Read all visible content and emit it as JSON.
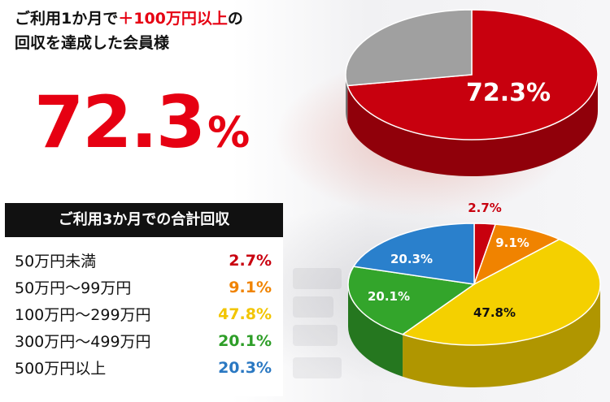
{
  "headline": {
    "part1": "ご利用1か月で",
    "highlight": "＋100万円以上",
    "part2": "の",
    "line2": "回収を達成した会員様"
  },
  "big_percent": {
    "number": "72.3",
    "unit": "%"
  },
  "table": {
    "title": "ご利用3か月での合計回収",
    "rows": [
      {
        "label": "50万円未満",
        "value": "2.7%",
        "color": "#c9000f"
      },
      {
        "label": "50万円～99万円",
        "value": "9.1%",
        "color": "#f08300"
      },
      {
        "label": "100万円～299万円",
        "value": "47.8%",
        "color": "#f2c500"
      },
      {
        "label": "300万円～499万円",
        "value": "20.1%",
        "color": "#2e9e28"
      },
      {
        "label": "500万円以上",
        "value": "20.3%",
        "color": "#2a78c2"
      }
    ]
  },
  "chart_data": [
    {
      "type": "pie",
      "categories": [
        "",
        ""
      ],
      "values": [
        72.3,
        27.7
      ],
      "slice_labels": [
        "72.3%",
        ""
      ],
      "colors": [
        "#c8000e",
        "#a0a0a0"
      ]
    },
    {
      "type": "pie",
      "title": "ご利用3か月での合計回収",
      "categories": [
        "50万円未満",
        "50万円～99万円",
        "100万円～299万円",
        "300万円～499万円",
        "500万円以上"
      ],
      "values": [
        2.7,
        9.1,
        47.8,
        20.1,
        20.3
      ],
      "slice_labels": [
        "2.7%",
        "9.1%",
        "47.8%",
        "20.1%",
        "20.3%"
      ],
      "colors": [
        "#c8000e",
        "#f08300",
        "#f4d000",
        "#33a52b",
        "#2a80cc"
      ],
      "label_colors": [
        "#c8000e",
        "#ffffff",
        "#111111",
        "#ffffff",
        "#ffffff"
      ]
    }
  ]
}
